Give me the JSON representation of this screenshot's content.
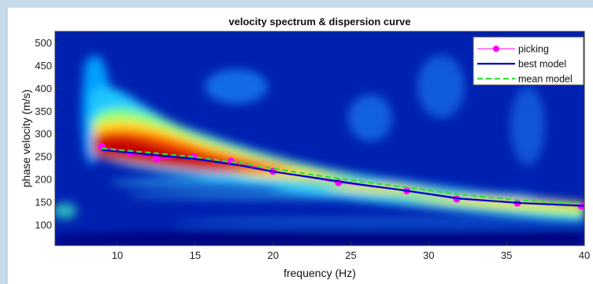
{
  "chart_data": {
    "type": "heatmap",
    "title": "velocity spectrum & dispersion curve",
    "xlabel": "frequency (Hz)",
    "ylabel": "phase velocity (m/s)",
    "xlim": [
      6,
      40
    ],
    "ylim": [
      55,
      525
    ],
    "x_ticks": [
      10,
      15,
      20,
      25,
      30,
      35,
      40
    ],
    "y_ticks": [
      100,
      150,
      200,
      250,
      300,
      350,
      400,
      450,
      500
    ],
    "colormap": "jet",
    "legend_position": "top-right",
    "series": [
      {
        "name": "picking",
        "style": "line-with-markers",
        "color": "#ff00ff",
        "x": [
          9.0,
          10.8,
          12.5,
          14.9,
          17.3,
          20.0,
          24.2,
          28.6,
          31.8,
          35.7,
          39.8
        ],
        "y": [
          272,
          258,
          245,
          250,
          240,
          218,
          193,
          175,
          157,
          148,
          142
        ]
      },
      {
        "name": "best model",
        "style": "solid",
        "color": "#0000cc",
        "x": [
          9.0,
          12,
          15,
          18,
          20,
          22,
          24,
          26,
          28,
          30,
          32,
          34,
          36,
          38,
          40
        ],
        "y": [
          265,
          255,
          245,
          230,
          217,
          207,
          197,
          187,
          178,
          168,
          158,
          153,
          148,
          145,
          142
        ]
      },
      {
        "name": "mean model",
        "style": "dashed",
        "color": "#33dd33",
        "x": [
          9.0,
          12,
          15,
          18,
          20,
          22,
          24,
          26,
          28,
          30,
          32,
          34,
          36,
          38,
          40
        ],
        "y": [
          268,
          259,
          249,
          236,
          224,
          213,
          203,
          194,
          185,
          176,
          167,
          160,
          154,
          150,
          147
        ]
      }
    ]
  }
}
